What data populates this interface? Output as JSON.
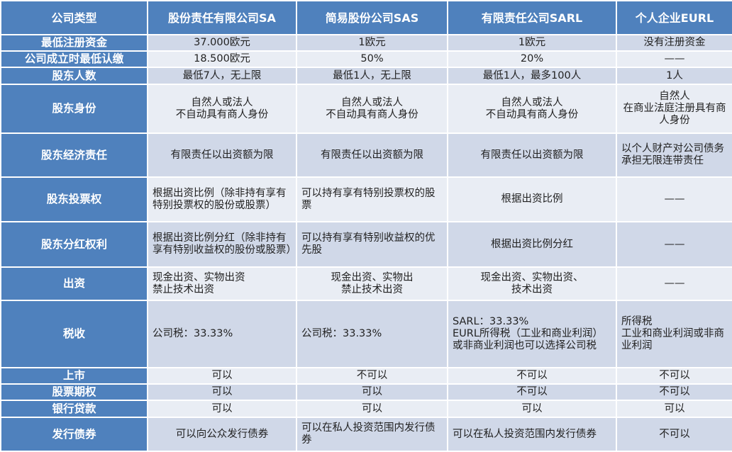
{
  "colors": {
    "header": "#4f81bd",
    "row_dark": "#d0d8e8",
    "row_light": "#e9edf4"
  },
  "headers": [
    "公司类型",
    "股份责任有限公司SA",
    "简易股份公司SAS",
    "有限责任公司SARL",
    "个人企业EURL"
  ],
  "rows": [
    {
      "label": "最低注册资金",
      "cells": [
        "37.000欧元",
        "1欧元",
        "1欧元",
        "没有注册资金"
      ]
    },
    {
      "label": "公司成立时最低认缴",
      "cells": [
        "18.500欧元",
        "50%",
        "20%",
        "——"
      ]
    },
    {
      "label": "股东人数",
      "cells": [
        "最低7人，无上限",
        "最低1人，无上限",
        "最低1人，最多100人",
        "1人"
      ]
    },
    {
      "label": "股东身份",
      "cells": [
        "自然人或法人\n不自动具有商人身份",
        "自然人或法人\n不自动具有商人身份",
        "自然人或法人\n不自动具有商人身份",
        "自然人\n在商业法庭注册具有商人身份"
      ]
    },
    {
      "label": "股东经济责任",
      "cells": [
        "有限责任以出资额为限",
        "有限责任以出资额为限",
        "有限责任以出资额为限",
        "以个人财产对公司债务承担无限连带责任"
      ]
    },
    {
      "label": "股东投票权",
      "cells": [
        "根据出资比例（除非持有享有特别投票权的股份或股票）",
        "可以持有享有特别投票权的股票",
        "根据出资比例",
        "——"
      ]
    },
    {
      "label": "股东分红权利",
      "cells": [
        "根据出资比例分红（除非持有享有特别收益权的股份或股票）",
        "可以持有享有特别收益权的优先股",
        "根据出资比例分红",
        "——"
      ]
    },
    {
      "label": "出资",
      "cells": [
        "现金出资、实物出资\n禁止技术出资",
        "现金出资、实物出\n禁止技术出资",
        "现金出资、实物出资、\n技术出资",
        "——"
      ]
    },
    {
      "label": "税收",
      "cells": [
        "公司税：33.33%",
        "公司税：33.33%",
        "SARL：33.33%\nEURL所得税（工业和商业利润）或非商业利润也可以选择公司税",
        "所得税\n工业和商业利润或非商业利润"
      ]
    },
    {
      "label": "上市",
      "cells": [
        "可以",
        "不可以",
        "不可以",
        "不可以"
      ]
    },
    {
      "label": "股票期权",
      "cells": [
        "可以",
        "可以",
        "不可以",
        "不可以"
      ]
    },
    {
      "label": "银行贷款",
      "cells": [
        "可以",
        "可以",
        "可以",
        "可以"
      ]
    },
    {
      "label": "发行债券",
      "cells": [
        "可以向公众发行债券",
        "可以在私人投资范围内发行债券",
        "可以在私人投资范围内发行债券",
        "不可以"
      ]
    }
  ]
}
